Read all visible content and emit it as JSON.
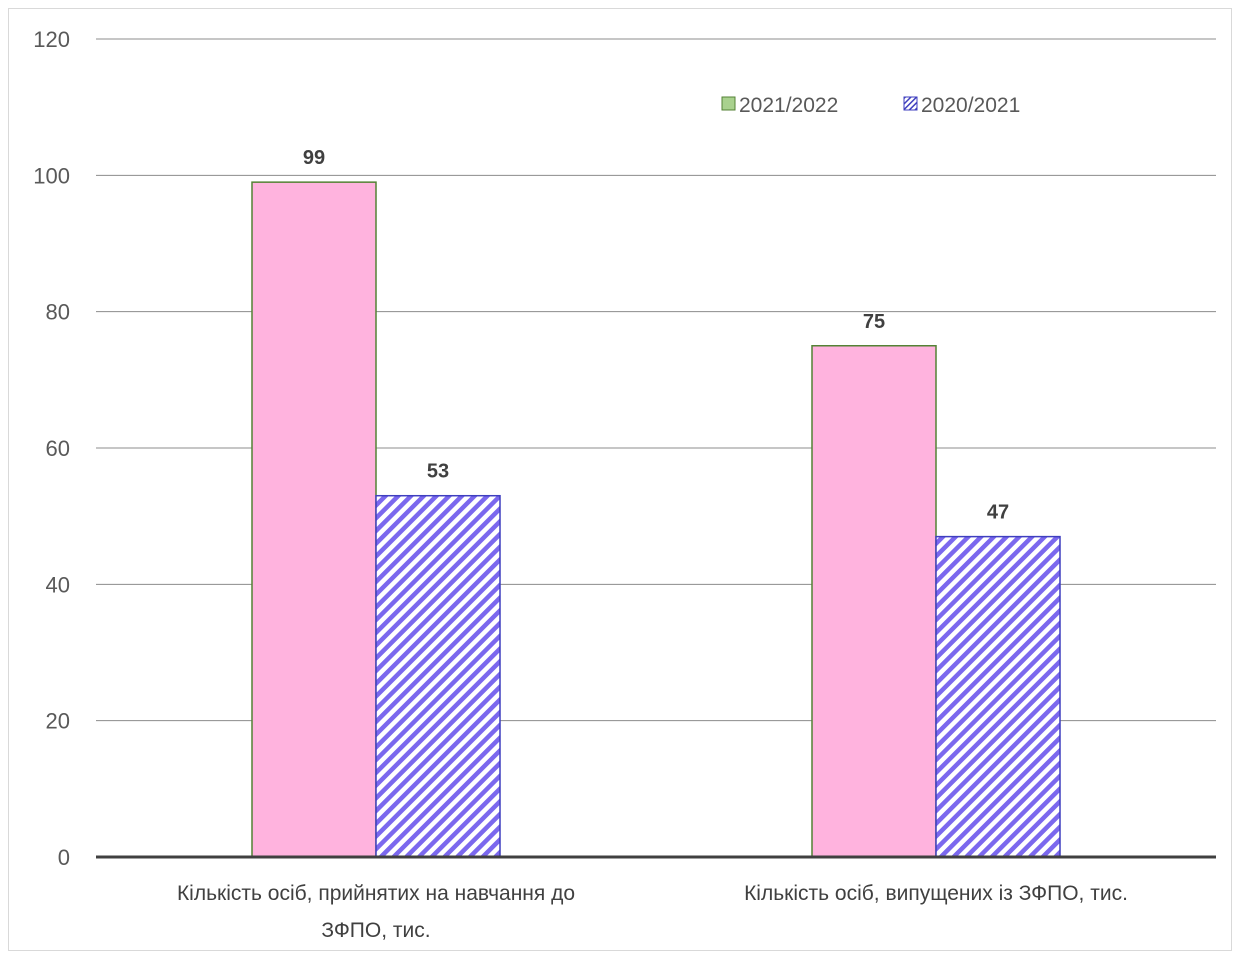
{
  "chart_data": {
    "type": "bar",
    "categories": [
      [
        "Кількість осіб, прийнятих на навчання до",
        "ЗФПО, тис."
      ],
      [
        "Кількість осіб, випущених із ЗФПО, тис."
      ]
    ],
    "series": [
      {
        "name": "2021/2022",
        "values": [
          99,
          75
        ],
        "fill": "#ffb3de",
        "stroke": "#548235",
        "legend_fill": "#a9d18e"
      },
      {
        "name": "2020/2021",
        "values": [
          53,
          47
        ],
        "fill": "hatch",
        "stroke": "#3f3fbf",
        "hatch_color": "#7b68ee"
      }
    ],
    "ylim": [
      0,
      120
    ],
    "yticks": [
      0,
      20,
      40,
      60,
      80,
      100,
      120
    ],
    "grid": true,
    "legend_position": "top-right",
    "data_labels": true
  }
}
